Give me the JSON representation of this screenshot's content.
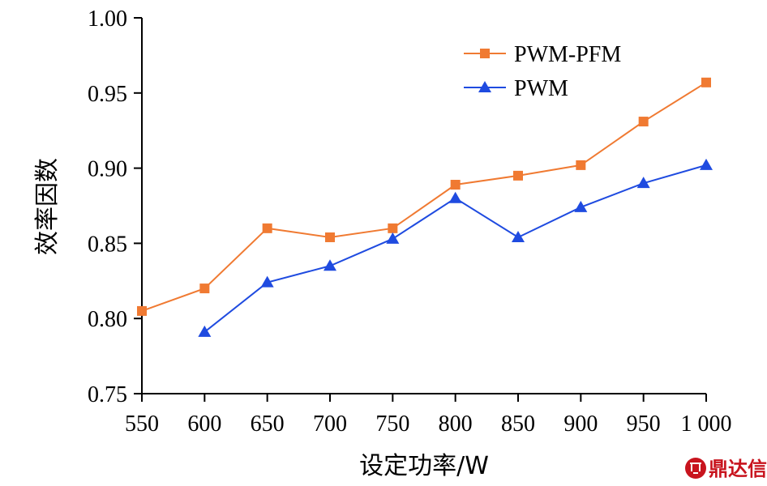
{
  "chart_data": {
    "type": "line",
    "xlabel": "设定功率/W",
    "ylabel": "效率因数",
    "xlim": [
      550,
      1000
    ],
    "ylim": [
      0.75,
      1.0
    ],
    "x_ticks": [
      "550",
      "600",
      "650",
      "700",
      "750",
      "800",
      "850",
      "900",
      "950",
      "1 000"
    ],
    "y_ticks": [
      "0.75",
      "0.80",
      "0.85",
      "0.90",
      "0.95",
      "1.00"
    ],
    "legend_position": "top-right",
    "series": [
      {
        "name": "PWM-PFM",
        "color": "#f07a32",
        "marker": "square",
        "x": [
          550,
          600,
          650,
          700,
          750,
          800,
          850,
          900,
          950,
          1000
        ],
        "y": [
          0.805,
          0.82,
          0.86,
          0.854,
          0.86,
          0.889,
          0.895,
          0.902,
          0.931,
          0.957
        ]
      },
      {
        "name": "PWM",
        "color": "#1f4be0",
        "marker": "triangle",
        "x": [
          600,
          650,
          700,
          750,
          800,
          850,
          900,
          950,
          1000
        ],
        "y": [
          0.791,
          0.824,
          0.835,
          0.853,
          0.88,
          0.854,
          0.874,
          0.89,
          0.902
        ]
      }
    ]
  },
  "watermark": {
    "text": "鼎达信",
    "color": "#c8141e"
  }
}
